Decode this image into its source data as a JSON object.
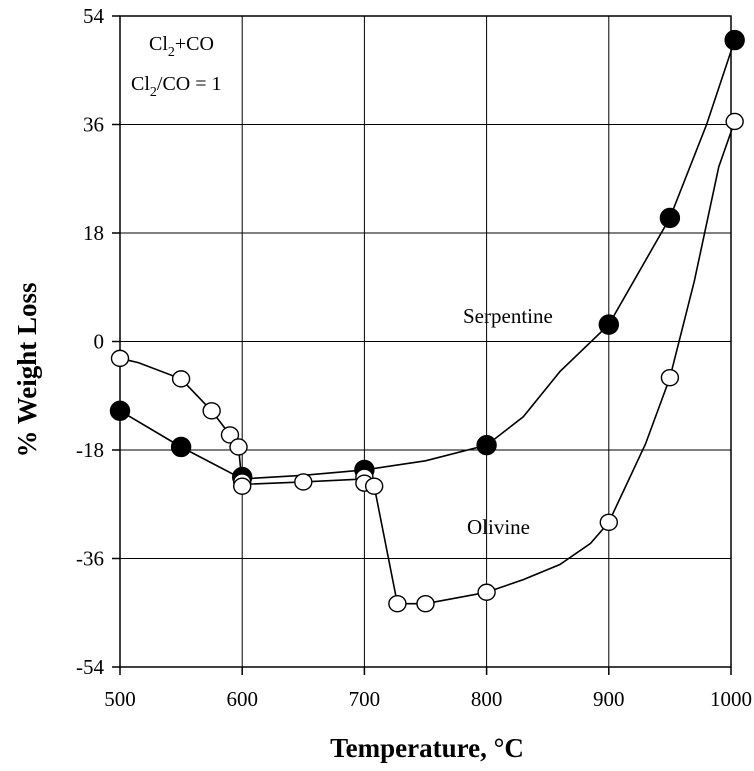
{
  "chart_data": {
    "type": "line",
    "xlabel": "Temperature, °C",
    "ylabel": "% Weight Loss",
    "xlim": [
      500,
      1000
    ],
    "ylim": [
      -54,
      54
    ],
    "xticks": [
      500,
      600,
      700,
      800,
      900,
      1000
    ],
    "yticks": [
      -54,
      -36,
      -18,
      0,
      18,
      36,
      54
    ],
    "grid": true,
    "annotation": {
      "line1": {
        "base": "Cl",
        "sub": "2",
        "rest": "+CO"
      },
      "line2": {
        "base": "Cl",
        "sub": "2",
        "rest": "/CO = 1"
      }
    },
    "series": [
      {
        "name": "Serpentine",
        "marker": "filled-circle",
        "curve_x": [
          500,
          550,
          600,
          650,
          700,
          750,
          800,
          830,
          860,
          900,
          950,
          980,
          1003
        ],
        "curve_y": [
          -11.5,
          -17.5,
          -22.8,
          -22.2,
          -21.3,
          -19.8,
          -17.2,
          -12.5,
          -5,
          2.8,
          20.5,
          36,
          50
        ],
        "points_x": [
          500,
          550,
          600,
          700,
          800,
          900,
          950,
          1003
        ],
        "points_y": [
          -11.5,
          -17.5,
          -22.5,
          -21.3,
          -17.2,
          2.8,
          20.5,
          50
        ]
      },
      {
        "name": "Olivine",
        "marker": "open-circle",
        "curve_x": [
          500,
          515,
          550,
          575,
          590,
          597,
          600,
          650,
          700,
          708,
          727,
          750,
          800,
          830,
          860,
          885,
          900,
          930,
          950,
          970,
          990,
          1003
        ],
        "curve_y": [
          -2.8,
          -3.5,
          -6.2,
          -11.5,
          -15.5,
          -17.5,
          -23.7,
          -23.3,
          -22.8,
          -24,
          -43.5,
          -43.5,
          -41.6,
          -39.5,
          -37,
          -33.5,
          -30,
          -17,
          -6,
          10,
          29,
          36.5
        ],
        "points_x": [
          500,
          550,
          575,
          590,
          597,
          600,
          600,
          650,
          700,
          700,
          708,
          727,
          750,
          800,
          900,
          950,
          1003
        ],
        "points_y": [
          -2.8,
          -6.2,
          -11.5,
          -15.5,
          -17.5,
          -23.3,
          -24,
          -23.3,
          -22.5,
          -23.5,
          -24,
          -43.5,
          -43.5,
          -41.6,
          -30,
          -6,
          36.5
        ]
      }
    ]
  }
}
